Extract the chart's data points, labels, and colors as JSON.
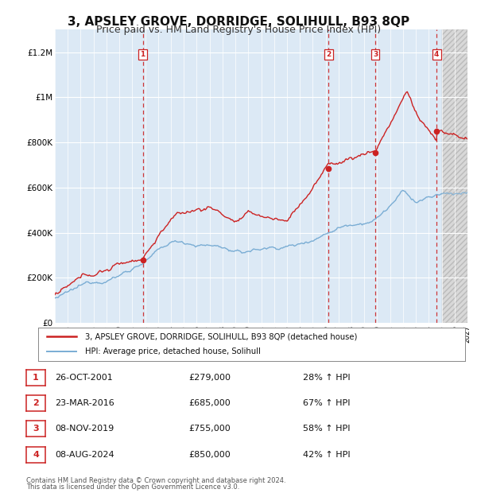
{
  "title": "3, APSLEY GROVE, DORRIDGE, SOLIHULL, B93 8QP",
  "subtitle": "Price paid vs. HM Land Registry's House Price Index (HPI)",
  "title_fontsize": 11,
  "subtitle_fontsize": 9,
  "plot_bg_color": "#dce9f5",
  "grid_color": "#ffffff",
  "hpi_line_color": "#7aadd4",
  "price_line_color": "#cc2222",
  "dashed_line_color": "#cc2222",
  "sale_points": [
    {
      "label": "1",
      "year": 2001.82,
      "price": 279000,
      "date": "26-OCT-2001"
    },
    {
      "label": "2",
      "year": 2016.23,
      "price": 685000,
      "date": "23-MAR-2016"
    },
    {
      "label": "3",
      "year": 2019.85,
      "price": 755000,
      "date": "08-NOV-2019"
    },
    {
      "label": "4",
      "year": 2024.6,
      "price": 850000,
      "date": "08-AUG-2024"
    }
  ],
  "ylim": [
    0,
    1300000
  ],
  "yticks": [
    0,
    200000,
    400000,
    600000,
    800000,
    1000000,
    1200000
  ],
  "ytick_labels": [
    "£0",
    "£200K",
    "£400K",
    "£600K",
    "£800K",
    "£1M",
    "£1.2M"
  ],
  "xlim_start": 1995,
  "xlim_end": 2027,
  "future_cutoff": 2025.0,
  "legend_entries": [
    "3, APSLEY GROVE, DORRIDGE, SOLIHULL, B93 8QP (detached house)",
    "HPI: Average price, detached house, Solihull"
  ],
  "footer_lines": [
    "Contains HM Land Registry data © Crown copyright and database right 2024.",
    "This data is licensed under the Open Government Licence v3.0."
  ],
  "table_rows": [
    [
      "1",
      "26-OCT-2001",
      "£279,000",
      "28% ↑ HPI"
    ],
    [
      "2",
      "23-MAR-2016",
      "£685,000",
      "67% ↑ HPI"
    ],
    [
      "3",
      "08-NOV-2019",
      "£755,000",
      "58% ↑ HPI"
    ],
    [
      "4",
      "08-AUG-2024",
      "£850,000",
      "42% ↑ HPI"
    ]
  ]
}
